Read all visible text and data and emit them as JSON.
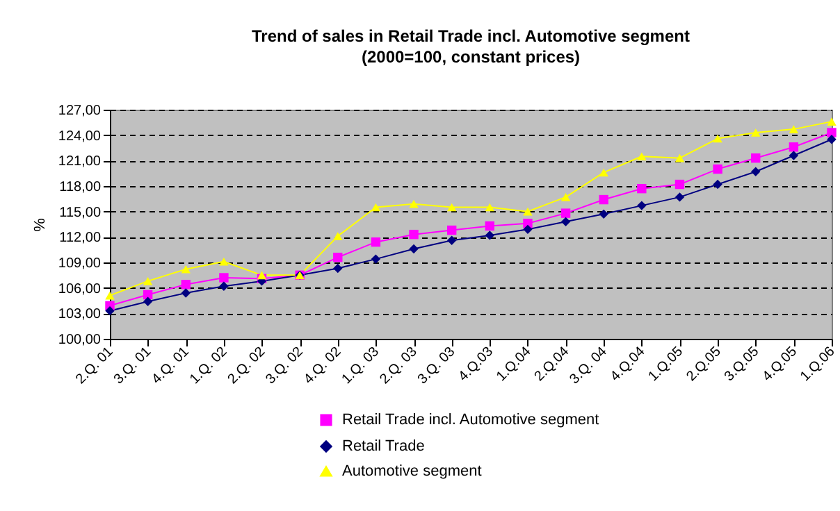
{
  "chart_data": {
    "type": "line",
    "title": "Trend of sales in Retail Trade incl. Automotive segment",
    "subtitle": "(2000=100, constant prices)",
    "ylabel": "%",
    "categories": [
      "2.Q. 01",
      "3.Q. 01",
      "4.Q. 01",
      "1.Q. 02",
      "2.Q. 02",
      "3.Q. 02",
      "4.Q. 02",
      "1.Q. 03",
      "2.Q. 03",
      "3.Q. 03",
      "4.Q.03",
      "1.Q.04",
      "2.Q.04",
      "3.Q. 04",
      "4.Q.04",
      "1.Q.05",
      "2.Q.05",
      "3.Q.05",
      "4.Q.05",
      "1.Q.06"
    ],
    "series": [
      {
        "name": "Retail Trade incl. Automotive segment",
        "color": "#ff00ff",
        "marker": "square",
        "values": [
          103.9,
          105.2,
          106.4,
          107.2,
          107.1,
          107.5,
          109.6,
          111.4,
          112.3,
          112.8,
          113.3,
          113.6,
          114.8,
          116.4,
          117.7,
          118.2,
          120.0,
          121.3,
          122.6,
          124.3
        ]
      },
      {
        "name": "Retail Trade",
        "color": "#000080",
        "marker": "diamond",
        "values": [
          103.3,
          104.4,
          105.4,
          106.2,
          106.8,
          107.5,
          108.3,
          109.4,
          110.6,
          111.6,
          112.2,
          112.9,
          113.8,
          114.7,
          115.7,
          116.7,
          118.2,
          119.7,
          121.6,
          123.5
        ]
      },
      {
        "name": "Automotive segment",
        "color": "#ffff00",
        "marker": "triangle",
        "values": [
          105.1,
          106.8,
          108.2,
          109.1,
          107.5,
          107.5,
          112.1,
          115.5,
          115.9,
          115.5,
          115.5,
          115.0,
          116.7,
          119.6,
          121.5,
          121.3,
          123.6,
          124.3,
          124.7,
          125.6
        ]
      }
    ],
    "ylim": [
      100,
      127
    ],
    "yticks": [
      {
        "value": 100,
        "label": "100,00"
      },
      {
        "value": 103,
        "label": "103,00"
      },
      {
        "value": 106,
        "label": "106,00"
      },
      {
        "value": 109,
        "label": "109,00"
      },
      {
        "value": 112,
        "label": "112,00"
      },
      {
        "value": 115,
        "label": "115,00"
      },
      {
        "value": 118,
        "label": "118,00"
      },
      {
        "value": 121,
        "label": "121,00"
      },
      {
        "value": 124,
        "label": "124,00"
      },
      {
        "value": 127,
        "label": "127,00"
      }
    ],
    "grid": "y",
    "legend": "bottom",
    "line_style": "solid"
  }
}
